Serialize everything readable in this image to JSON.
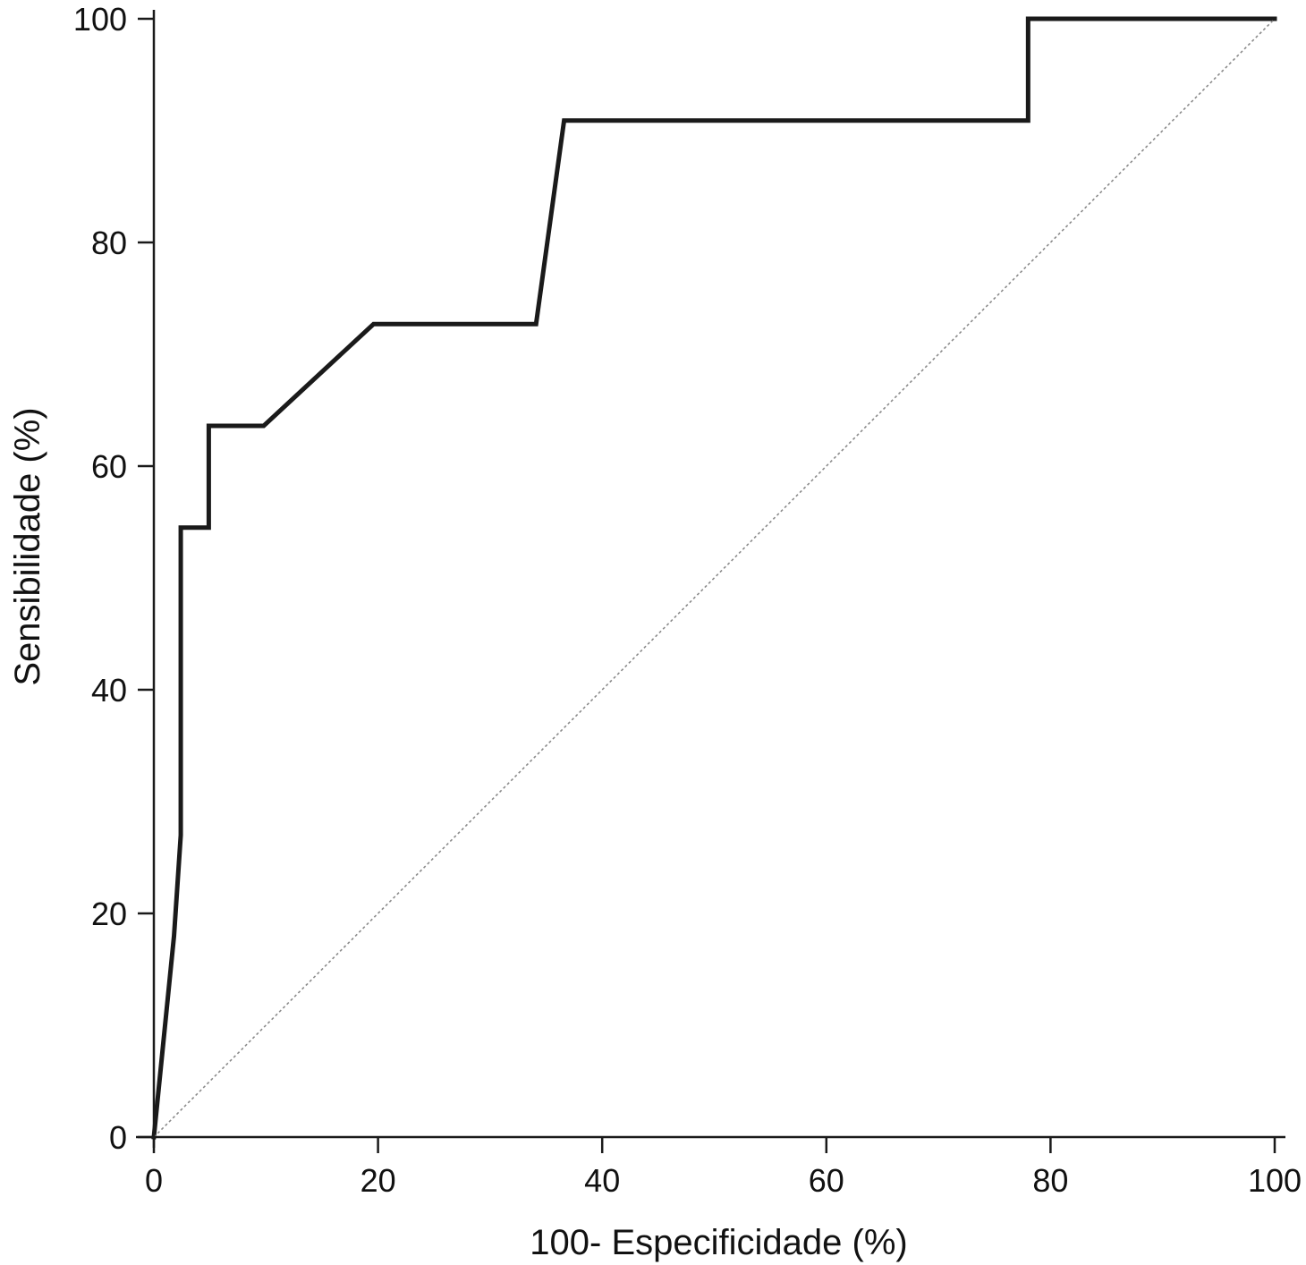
{
  "chart_data": {
    "type": "line",
    "xlabel": "100- Especificidade (%)",
    "ylabel": "Sensibilidade (%)",
    "xlim": [
      0,
      100
    ],
    "ylim": [
      0,
      100
    ],
    "x_ticks": [
      "0",
      "20",
      "40",
      "60",
      "80",
      "100"
    ],
    "y_ticks": [
      "0",
      "20",
      "40",
      "60",
      "80",
      "100"
    ],
    "grid": false,
    "series": [
      {
        "style": "solid",
        "color": "#1a1a1a",
        "points": [
          [
            0,
            0
          ],
          [
            1.8,
            18
          ],
          [
            2.4,
            27
          ],
          [
            2.4,
            54.5
          ],
          [
            4.9,
            54.5
          ],
          [
            4.9,
            63.6
          ],
          [
            9.8,
            63.6
          ],
          [
            19.6,
            72.7
          ],
          [
            34.1,
            72.7
          ],
          [
            36.6,
            90.9
          ],
          [
            78.0,
            90.9
          ],
          [
            78.0,
            100
          ],
          [
            100,
            100
          ]
        ]
      },
      {
        "style": "dotted",
        "color": "#8a8a8a",
        "points": [
          [
            0,
            0
          ],
          [
            100,
            100
          ]
        ]
      }
    ]
  }
}
